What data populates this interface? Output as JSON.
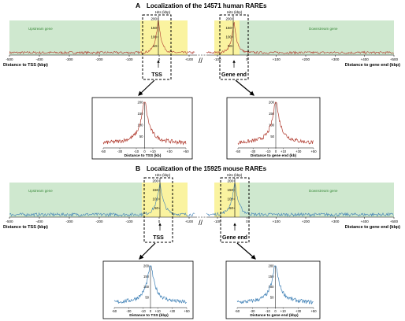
{
  "panelA": {
    "letter": "A",
    "title": "Localization of the 14571 human RAREs",
    "upstream_label": "Upstream gene",
    "downstream_label": "Downstream gene",
    "hits_label": "Hits (kbp)",
    "xlabel_left": "Distance to TSS (kbp)",
    "xlabel_right": "Distance to gene end (kbp)",
    "tss_label": "TSS",
    "gene_end_label": "Gene end",
    "color": "#b03a2e"
  },
  "panelB": {
    "letter": "B",
    "title": "Localization of the 15925 mouse RAREs",
    "upstream_label": "Upstream gene",
    "downstream_label": "Downstream gene",
    "hits_label": "Hits (kbp)",
    "xlabel_left": "Distance to TSS (kbp)",
    "xlabel_right": "Distance to gene end (kbp)",
    "tss_label": "TSS",
    "gene_end_label": "Gene end",
    "color": "#3d7fb5"
  },
  "colors": {
    "upstream_bg": "#cfe8cf",
    "center_bg": "#faf3a0",
    "green_text": "#3a8a3a"
  },
  "ticks": {
    "left_x": [
      "-500",
      "-400",
      "-300",
      "-200",
      "-100",
      "0",
      "+100"
    ],
    "right_x": [
      "-100",
      "0",
      "+100",
      "+200",
      "+300",
      "+400",
      "+500"
    ],
    "y": [
      "50",
      "100",
      "150",
      "200"
    ],
    "zoom_x": [
      "-50",
      "-30",
      "-10",
      "0",
      "+10",
      "+30",
      "+50"
    ],
    "zoom_y": [
      "50",
      "100",
      "150",
      "200"
    ]
  },
  "zoom": {
    "a_left_xlabel": "Distance to TSS (kb)",
    "a_right_xlabel": "Distance to gene end (kb)",
    "b_left_xlabel": "Distance to TSS (kbp)",
    "b_right_xlabel": "Distance to gene end (kbp)"
  },
  "break_mark": "//"
}
